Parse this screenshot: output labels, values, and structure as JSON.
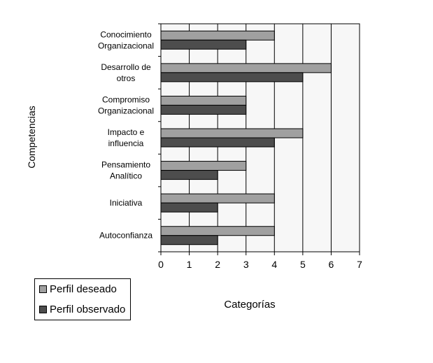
{
  "chart_data": {
    "type": "bar",
    "orientation": "horizontal",
    "xlabel": "Categorías",
    "ylabel": "Competencias",
    "xlim": [
      0,
      7
    ],
    "xticks": [
      "0",
      "1",
      "2",
      "3",
      "4",
      "5",
      "6",
      "7"
    ],
    "grid": true,
    "legend_position": "bottom-left",
    "categories": [
      [
        "Conocimiento",
        "Organizacional"
      ],
      [
        "Desarrollo de",
        "otros"
      ],
      [
        "Compromiso",
        "Organizacional"
      ],
      [
        "Impacto e",
        "influencia"
      ],
      [
        "Pensamiento",
        "Analítico"
      ],
      [
        "Iniciativa"
      ],
      [
        "Autoconfianza"
      ]
    ],
    "series": [
      {
        "name": "Perfil deseado",
        "color": "#a0a0a0",
        "values": [
          4,
          6,
          3,
          5,
          3,
          4,
          4
        ]
      },
      {
        "name": "Perfil observado",
        "color": "#4d4d4d",
        "values": [
          3,
          5,
          3,
          4,
          2,
          2,
          2
        ]
      }
    ],
    "plot_background": "#f7f7f7"
  }
}
